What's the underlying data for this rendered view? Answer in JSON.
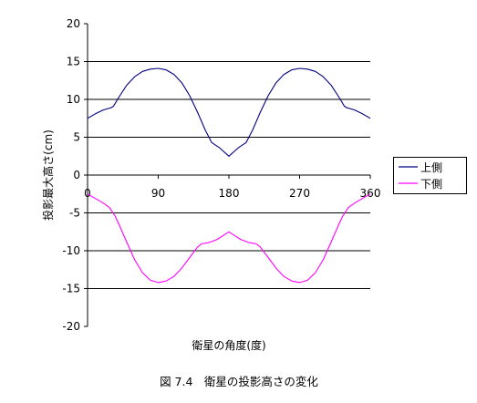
{
  "figure": {
    "caption": "図 7.4　衛星の投影高さの変化"
  },
  "chart_data": {
    "type": "line",
    "title": "",
    "xlabel": "衛星の角度(度)",
    "ylabel": "投影最大高さ(cm)",
    "xlim": [
      0,
      360
    ],
    "ylim": [
      -20,
      20
    ],
    "x_ticks": [
      0,
      90,
      180,
      270,
      360
    ],
    "x_tick_labels": [
      "0",
      "90",
      "180",
      "270",
      "360"
    ],
    "y_ticks": [
      20,
      15,
      10,
      5,
      0,
      -5,
      -10,
      -15,
      -20
    ],
    "y_tick_labels": [
      "20",
      "15",
      "10",
      "5",
      "0",
      "-5",
      "-10",
      "-15",
      "-20"
    ],
    "grid": true,
    "legend": "right",
    "series": [
      {
        "name": "上側",
        "color": "#000080",
        "x": [
          0,
          10,
          20,
          30,
          33,
          40,
          50,
          60,
          70,
          80,
          90,
          100,
          110,
          120,
          130,
          140,
          150,
          158,
          168,
          180,
          192,
          202,
          210,
          220,
          230,
          240,
          250,
          260,
          270,
          280,
          290,
          300,
          310,
          320,
          327,
          330,
          340,
          350,
          360
        ],
        "y": [
          7.5,
          8.1,
          8.6,
          8.9,
          9.1,
          10.3,
          11.9,
          13.0,
          13.7,
          14.0,
          14.1,
          13.9,
          13.3,
          12.2,
          10.5,
          8.3,
          5.9,
          4.3,
          3.6,
          2.5,
          3.6,
          4.3,
          5.9,
          8.3,
          10.5,
          12.2,
          13.3,
          13.9,
          14.1,
          14.0,
          13.7,
          13.0,
          11.9,
          10.3,
          9.1,
          8.9,
          8.6,
          8.1,
          7.5
        ]
      },
      {
        "name": "下側",
        "color": "#FF00FF",
        "x": [
          0,
          10,
          20,
          28,
          35,
          40,
          50,
          60,
          70,
          80,
          90,
          100,
          110,
          120,
          130,
          140,
          145,
          155,
          165,
          180,
          195,
          205,
          215,
          220,
          230,
          240,
          250,
          260,
          270,
          280,
          290,
          300,
          310,
          320,
          325,
          332,
          340,
          350,
          360
        ],
        "y": [
          -2.5,
          -3.1,
          -3.7,
          -4.3,
          -5.4,
          -6.5,
          -8.9,
          -11.2,
          -12.9,
          -13.9,
          -14.2,
          -14.0,
          -13.4,
          -12.3,
          -10.9,
          -9.5,
          -9.1,
          -8.9,
          -8.5,
          -7.5,
          -8.5,
          -8.9,
          -9.1,
          -9.5,
          -10.9,
          -12.3,
          -13.4,
          -14.0,
          -14.2,
          -13.9,
          -12.9,
          -11.2,
          -8.9,
          -6.5,
          -5.4,
          -4.3,
          -3.7,
          -3.1,
          -2.5
        ]
      }
    ]
  }
}
